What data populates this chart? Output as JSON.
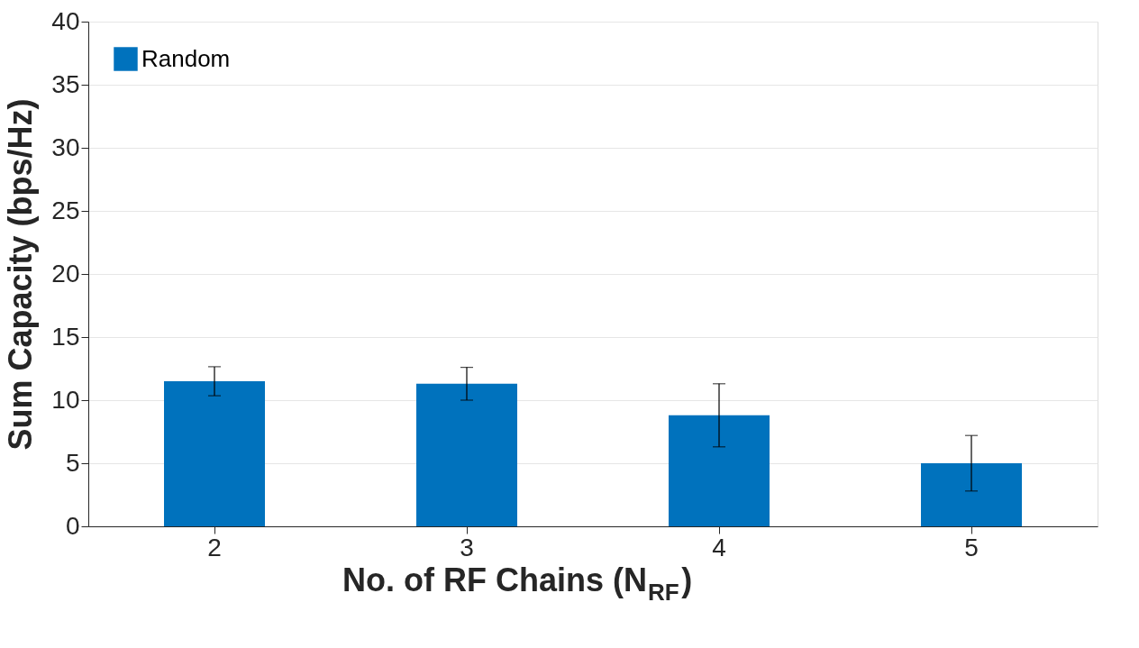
{
  "chart_data": {
    "type": "bar",
    "xlabel": "No. of RF Chains (N$_{RF}$)",
    "ylabel": "Sum Capacity (bps/Hz)",
    "categories": [
      "2",
      "3",
      "4",
      "5"
    ],
    "series": [
      {
        "name": "Random",
        "color": "#0072bd",
        "values": [
          11.5,
          11.3,
          8.8,
          5.0
        ],
        "errors": [
          1.15,
          1.3,
          2.5,
          2.2
        ]
      }
    ],
    "ylim": [
      0,
      40
    ],
    "yticks": [
      0,
      5,
      10,
      15,
      20,
      25,
      30,
      35,
      40
    ],
    "grid": "y",
    "legend": "top left"
  }
}
